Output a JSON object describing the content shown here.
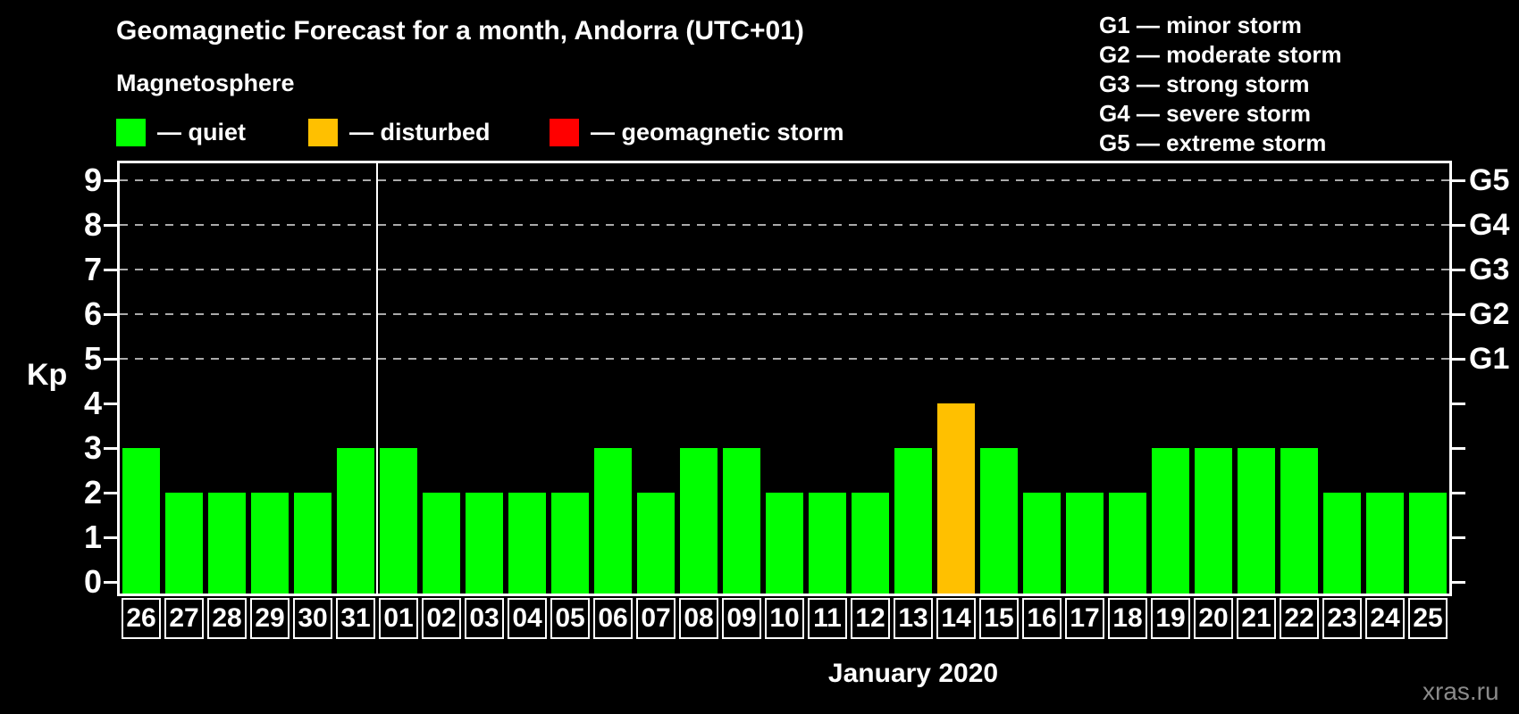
{
  "title": "Geomagnetic Forecast for a month, Andorra (UTC+01)",
  "subtitle": "Magnetosphere",
  "legend": {
    "items": [
      {
        "key": "quiet",
        "label": "— quiet",
        "color": "#00ff00"
      },
      {
        "key": "disturbed",
        "label": "— disturbed",
        "color": "#ffc000"
      },
      {
        "key": "storm",
        "label": "— geomagnetic storm",
        "color": "#ff0000"
      }
    ]
  },
  "storm_scale": [
    "G1 — minor storm",
    "G2 — moderate storm",
    "G3 — strong storm",
    "G4 — severe storm",
    "G5 — extreme storm"
  ],
  "watermark": "xras.ru",
  "colors": {
    "background": "#000000",
    "axis": "#ffffff",
    "grid": "#aaaaaa",
    "quiet": "#00ff00",
    "disturbed": "#ffc000",
    "storm": "#ff0000",
    "watermark": "#8a8a8a"
  },
  "chart_data": {
    "type": "bar",
    "title": "Geomagnetic Forecast for a month, Andorra (UTC+01)",
    "ylabel": "Kp",
    "xlabel": "January 2020",
    "ylim": [
      0,
      9
    ],
    "yticks": [
      0,
      1,
      2,
      3,
      4,
      5,
      6,
      7,
      8,
      9
    ],
    "grid_levels": [
      5,
      6,
      7,
      8,
      9
    ],
    "grid": true,
    "legend_position": "top",
    "right_axis_labels": [
      {
        "label": "G1",
        "value": 5
      },
      {
        "label": "G2",
        "value": 6
      },
      {
        "label": "G3",
        "value": 7
      },
      {
        "label": "G4",
        "value": 8
      },
      {
        "label": "G5",
        "value": 9
      }
    ],
    "categories": [
      "26",
      "27",
      "28",
      "29",
      "30",
      "31",
      "01",
      "02",
      "03",
      "04",
      "05",
      "06",
      "07",
      "08",
      "09",
      "10",
      "11",
      "12",
      "13",
      "14",
      "15",
      "16",
      "17",
      "18",
      "19",
      "20",
      "21",
      "22",
      "23",
      "24",
      "25"
    ],
    "values": [
      3,
      2,
      2,
      2,
      2,
      3,
      3,
      2,
      2,
      2,
      2,
      3,
      2,
      3,
      3,
      2,
      2,
      2,
      3,
      4,
      3,
      2,
      2,
      2,
      3,
      3,
      3,
      3,
      2,
      2,
      2
    ],
    "statuses": [
      "quiet",
      "quiet",
      "quiet",
      "quiet",
      "quiet",
      "quiet",
      "quiet",
      "quiet",
      "quiet",
      "quiet",
      "quiet",
      "quiet",
      "quiet",
      "quiet",
      "quiet",
      "quiet",
      "quiet",
      "quiet",
      "quiet",
      "disturbed",
      "quiet",
      "quiet",
      "quiet",
      "quiet",
      "quiet",
      "quiet",
      "quiet",
      "quiet",
      "quiet",
      "quiet",
      "quiet"
    ],
    "month_boundary_after_index": 5
  }
}
